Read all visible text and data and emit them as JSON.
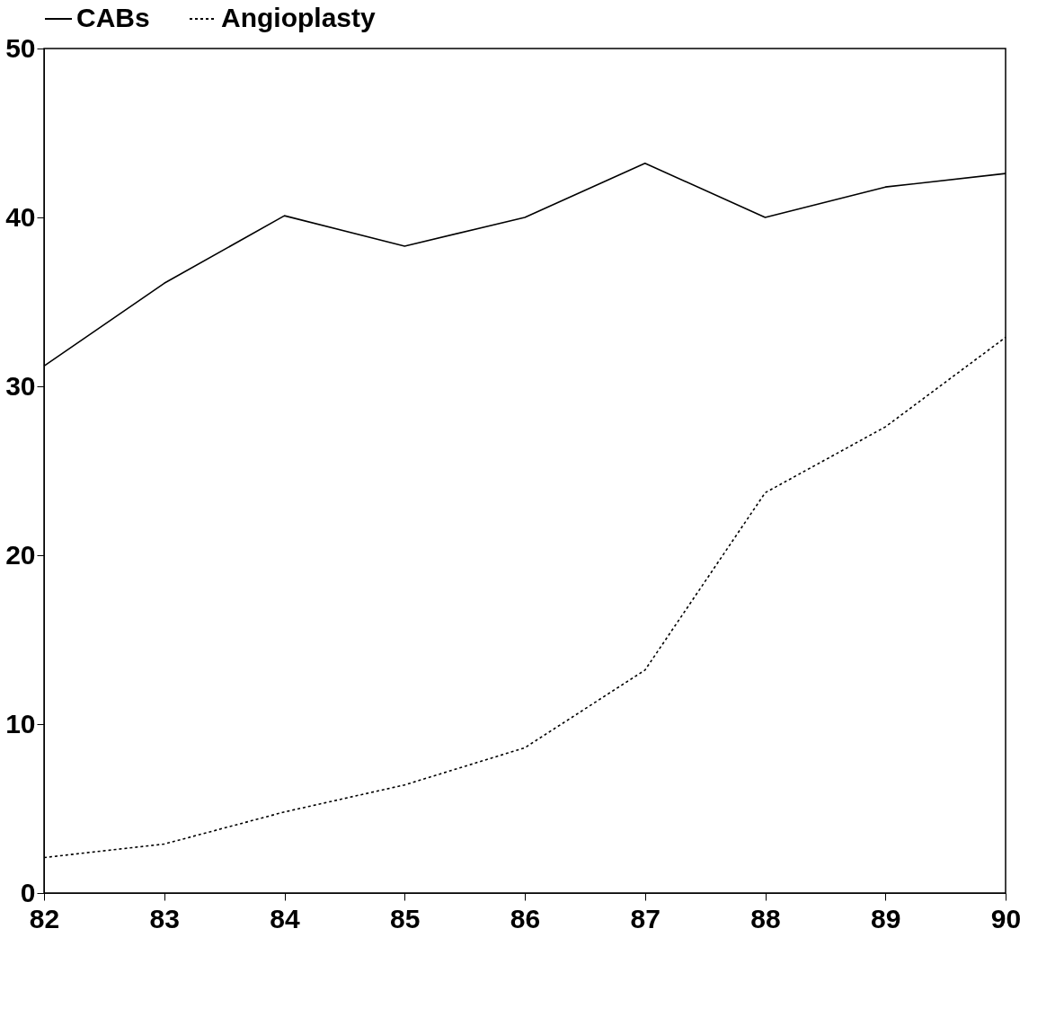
{
  "chart_data": {
    "type": "line",
    "x": [
      82,
      83,
      84,
      85,
      86,
      87,
      88,
      89,
      90
    ],
    "series": [
      {
        "name": "CABs",
        "color": "#000000",
        "line_style": "solid",
        "values": [
          31.2,
          36.1,
          40.1,
          38.3,
          40.0,
          43.2,
          40.0,
          41.8,
          42.6
        ]
      },
      {
        "name": "Angioplasty",
        "color": "#000000",
        "line_style": "dotted",
        "values": [
          2.1,
          2.9,
          4.8,
          6.4,
          8.6,
          13.2,
          23.7,
          27.6,
          32.9
        ]
      }
    ],
    "xlim": [
      82,
      90
    ],
    "xticks": [
      82,
      83,
      84,
      85,
      86,
      87,
      88,
      89,
      90
    ],
    "ylim": [
      0,
      50
    ],
    "yticks": [
      0,
      10,
      20,
      30,
      40,
      50
    ],
    "grid": false,
    "legend": "top",
    "marker": "none"
  }
}
